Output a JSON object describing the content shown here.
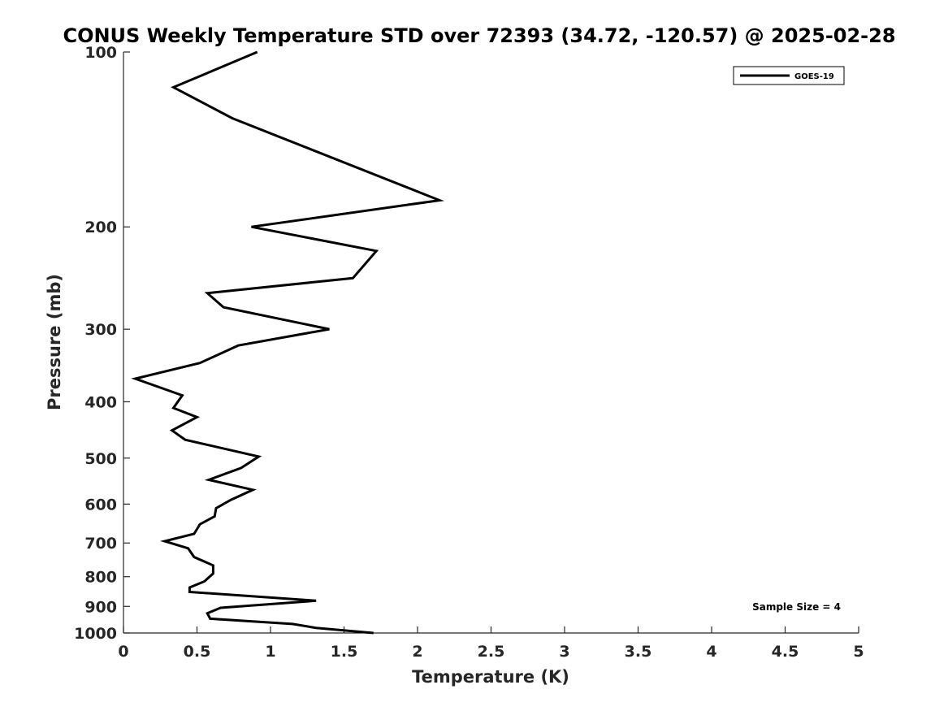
{
  "chart_data": {
    "type": "line",
    "title": "CONUS Weekly Temperature STD over 72393 (34.72, -120.57) @ 2025-02-28",
    "xlabel": "Temperature (K)",
    "ylabel": "Pressure (mb)",
    "xlim": [
      0,
      5
    ],
    "ylim": [
      100,
      1000
    ],
    "y_scale": "log",
    "y_inverted": true,
    "x_ticks": [
      "0",
      "0.5",
      "1",
      "1.5",
      "2",
      "2.5",
      "3",
      "3.5",
      "4",
      "4.5",
      "5"
    ],
    "y_ticks": [
      "100",
      "200",
      "300",
      "400",
      "500",
      "600",
      "700",
      "800",
      "900",
      "1000"
    ],
    "grid": false,
    "legend": {
      "position": "top-right",
      "entries": [
        "GOES-19"
      ]
    },
    "annotation": "Sample Size = 4",
    "series": [
      {
        "name": "GOES-19",
        "color": "#000000",
        "x": [
          0.91,
          0.34,
          0.74,
          2.15,
          0.87,
          1.72,
          1.56,
          0.57,
          0.68,
          1.4,
          0.78,
          0.52,
          0.08,
          0.4,
          0.34,
          0.5,
          0.33,
          0.42,
          0.92,
          0.8,
          0.58,
          0.88,
          0.73,
          0.63,
          0.62,
          0.52,
          0.48,
          0.28,
          0.44,
          0.48,
          0.61,
          0.61,
          0.55,
          0.45,
          0.45,
          1.31,
          0.66,
          0.57,
          0.59,
          1.15,
          1.31,
          1.7
        ],
        "y": [
          100,
          115,
          130,
          180,
          200,
          220,
          245,
          260,
          275,
          300,
          320,
          343,
          365,
          390,
          410,
          425,
          448,
          465,
          497,
          520,
          545,
          567,
          590,
          610,
          630,
          650,
          675,
          695,
          715,
          740,
          765,
          790,
          815,
          835,
          850,
          880,
          905,
          925,
          945,
          965,
          980,
          1000
        ]
      }
    ]
  }
}
